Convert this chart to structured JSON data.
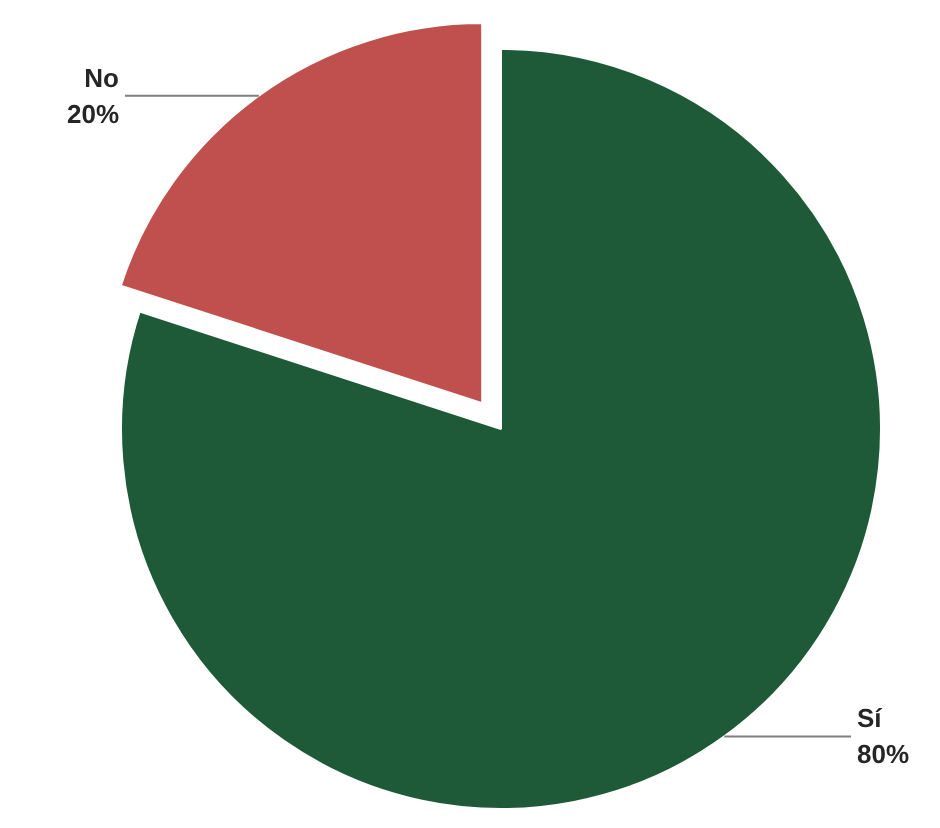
{
  "chart_data": {
    "type": "pie",
    "categories": [
      "Sí",
      "No"
    ],
    "values": [
      80,
      20
    ],
    "value_labels": [
      "80%",
      "20%"
    ],
    "colors": [
      "#1e5a38",
      "#c0504d"
    ]
  }
}
